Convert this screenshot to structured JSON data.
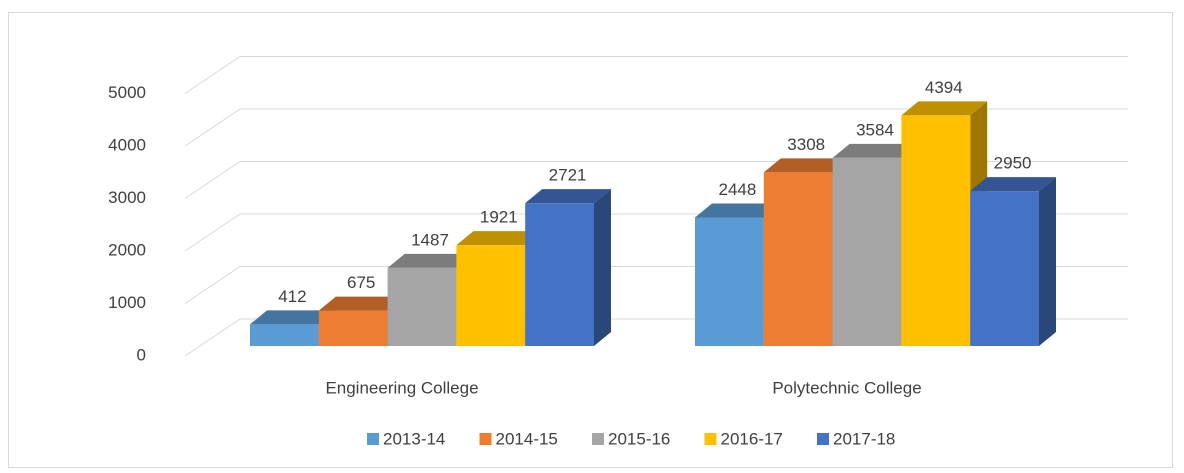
{
  "chart_data": {
    "type": "bar3d",
    "categories": [
      "Engineering College",
      "Polytechnic College"
    ],
    "series": [
      {
        "name": "2013-14",
        "color": "#5b9bd5",
        "values": [
          412,
          2448
        ]
      },
      {
        "name": "2014-15",
        "color": "#ed7d31",
        "values": [
          675,
          3308
        ]
      },
      {
        "name": "2015-16",
        "color": "#a5a5a5",
        "values": [
          1487,
          3584
        ]
      },
      {
        "name": "2016-17",
        "color": "#ffc000",
        "values": [
          1921,
          4394
        ]
      },
      {
        "name": "2017-18",
        "color": "#4472c4",
        "values": [
          2721,
          2950
        ]
      }
    ],
    "ylim": [
      0,
      5000
    ],
    "yticks": [
      0,
      1000,
      2000,
      3000,
      4000,
      5000
    ],
    "grid": true,
    "legend": "bottom",
    "data_labels": true
  }
}
